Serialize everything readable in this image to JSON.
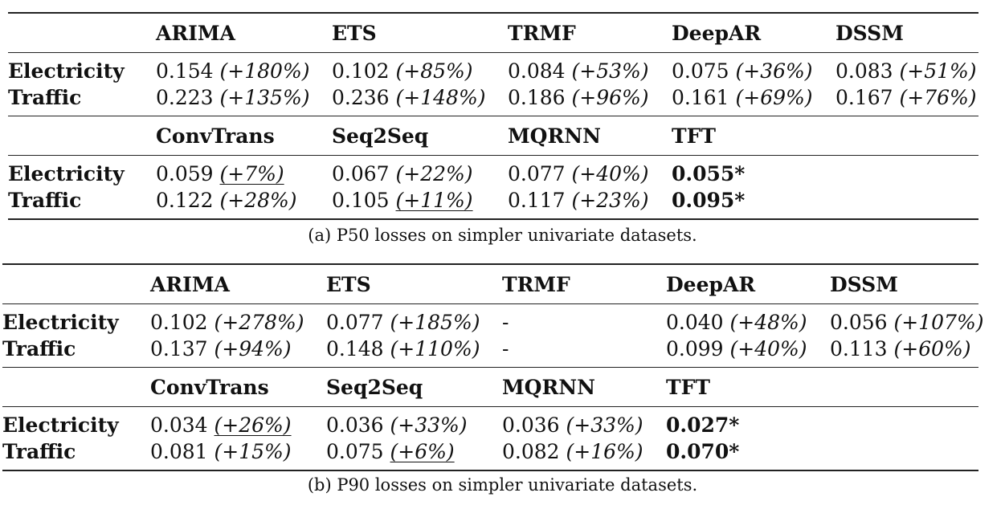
{
  "table_a": {
    "header1": [
      "ARIMA",
      "ETS",
      "TRMF",
      "DeepAR",
      "DSSM"
    ],
    "group1": [
      {
        "label": "Electricity",
        "cells": [
          {
            "value": "0.154",
            "pct": "(+180%)"
          },
          {
            "value": "0.102",
            "pct": "(+85%)"
          },
          {
            "value": "0.084",
            "pct": "(+53%)"
          },
          {
            "value": "0.075",
            "pct": "(+36%)"
          },
          {
            "value": "0.083",
            "pct": "(+51%)"
          }
        ]
      },
      {
        "label": "Traffic",
        "cells": [
          {
            "value": "0.223",
            "pct": "(+135%)"
          },
          {
            "value": "0.236",
            "pct": "(+148%)"
          },
          {
            "value": "0.186",
            "pct": "(+96%)"
          },
          {
            "value": "0.161",
            "pct": "(+69%)"
          },
          {
            "value": "0.167",
            "pct": "(+76%)"
          }
        ]
      }
    ],
    "header2": [
      "ConvTrans",
      "Seq2Seq",
      "MQRNN",
      "TFT"
    ],
    "group2": [
      {
        "label": "Electricity",
        "cells": [
          {
            "value": "0.059",
            "pct": "(+7%)"
          },
          {
            "value": "0.067",
            "pct": "(+22%)"
          },
          {
            "value": "0.077",
            "pct": "(+40%)"
          },
          {
            "value": "0.055*"
          }
        ]
      },
      {
        "label": "Traffic",
        "cells": [
          {
            "value": "0.122",
            "pct": "(+28%)"
          },
          {
            "value": "0.105",
            "pct": "(+11%)"
          },
          {
            "value": "0.117",
            "pct": "(+23%)"
          },
          {
            "value": "0.095*"
          }
        ]
      }
    ],
    "caption": "(a) P50 losses on simpler univariate datasets."
  },
  "table_b": {
    "header1": [
      "ARIMA",
      "ETS",
      "TRMF",
      "DeepAR",
      "DSSM"
    ],
    "group1": [
      {
        "label": "Electricity",
        "cells": [
          {
            "value": "0.102",
            "pct": "(+278%)"
          },
          {
            "value": "0.077",
            "pct": "(+185%)"
          },
          {
            "value": "-"
          },
          {
            "value": "0.040",
            "pct": "(+48%)"
          },
          {
            "value": "0.056",
            "pct": "(+107%)"
          }
        ]
      },
      {
        "label": "Traffic",
        "cells": [
          {
            "value": "0.137",
            "pct": "(+94%)"
          },
          {
            "value": "0.148",
            "pct": "(+110%)"
          },
          {
            "value": "-"
          },
          {
            "value": "0.099",
            "pct": "(+40%)"
          },
          {
            "value": "0.113",
            "pct": "(+60%)"
          }
        ]
      }
    ],
    "header2": [
      "ConvTrans",
      "Seq2Seq",
      "MQRNN",
      "TFT"
    ],
    "group2": [
      {
        "label": "Electricity",
        "cells": [
          {
            "value": "0.034",
            "pct": "(+26%)"
          },
          {
            "value": "0.036",
            "pct": "(+33%)"
          },
          {
            "value": "0.036",
            "pct": "(+33%)"
          },
          {
            "value": "0.027*"
          }
        ]
      },
      {
        "label": "Traffic",
        "cells": [
          {
            "value": "0.081",
            "pct": "(+15%)"
          },
          {
            "value": "0.075",
            "pct": "(+6%)"
          },
          {
            "value": "0.082",
            "pct": "(+16%)"
          },
          {
            "value": "0.070*"
          }
        ]
      }
    ],
    "caption": "(b) P90 losses on simpler univariate datasets."
  }
}
